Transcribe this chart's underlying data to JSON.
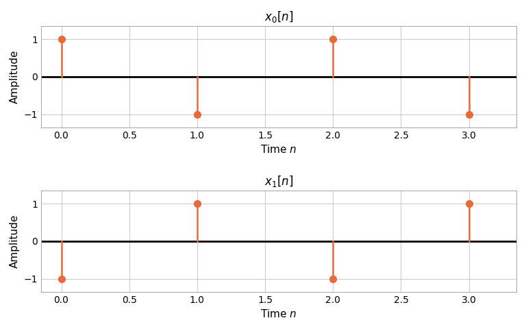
{
  "subplot1": {
    "title": "$x_0[n]$",
    "n": [
      0,
      1,
      2,
      3
    ],
    "values": [
      1,
      -1,
      1,
      -1
    ],
    "xlabel": "Time $n$",
    "ylabel": "Amplitude",
    "ylim": [
      -1.35,
      1.35
    ],
    "xlim": [
      -0.15,
      3.35
    ]
  },
  "subplot2": {
    "title": "$x_1[n]$",
    "n": [
      0,
      1,
      2,
      3
    ],
    "values": [
      -1,
      1,
      -1,
      1
    ],
    "xlabel": "Time $n$",
    "ylabel": "Amplitude",
    "ylim": [
      -1.35,
      1.35
    ],
    "xlim": [
      -0.15,
      3.35
    ]
  },
  "stem_color": "#E8693A",
  "marker_color": "#E8693A",
  "baseline_color": "black",
  "baseline_lw": 2.0,
  "stem_lw": 1.8,
  "marker_size": 7,
  "grid_color": "#cccccc",
  "grid_lw": 0.8,
  "yticks": [
    -1,
    0,
    1
  ],
  "xticks": [
    0.0,
    0.5,
    1.0,
    1.5,
    2.0,
    2.5,
    3.0
  ],
  "background_color": "#ffffff",
  "title_fontsize": 12,
  "label_fontsize": 11
}
